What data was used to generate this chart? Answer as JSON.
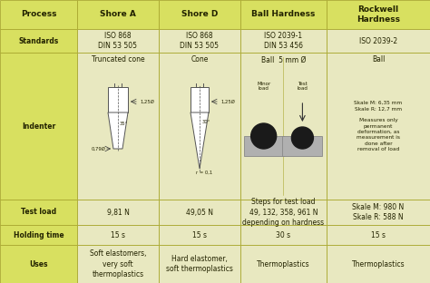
{
  "bg_color": "#f5f5c8",
  "header_bg": "#d8e060",
  "cell_bg": "#e8e8c0",
  "border_color": "#aaa830",
  "text_color": "#222200",
  "header_font_size": 6.5,
  "cell_font_size": 5.5,
  "small_font_size": 4.5,
  "headers": [
    "Process",
    "Shore A",
    "Shore D",
    "Ball Hardness",
    "Rockwell\nHardness"
  ],
  "stds": [
    "ISO 868\nDIN 53 505",
    "ISO 868\nDIN 53 505",
    "ISO 2039-1\nDIN 53 456",
    "ISO 2039-2"
  ],
  "indent_labels": [
    "Truncated cone",
    "Cone",
    "Ball  5 mm Ø",
    "Ball"
  ],
  "rockwell_text": "Skale M: 6,35 mm\nSkale R: 12,7 mm\n\nMeasures only\npermanent\ndeformation, as\nmeasurement is\ndone after\nremoval of load",
  "tloads": [
    "9,81 N",
    "49,05 N",
    "Steps for test load\n49, 132, 358, 961 N\ndepending on hardness",
    "Skale M: 980 N\nSkale R: 588 N"
  ],
  "htimes": [
    "15 s",
    "15 s",
    "30 s",
    "15 s"
  ],
  "uses": [
    "Soft elastomers,\nvery soft\nthermoplastics",
    "Hard elastomer,\nsoft thermoplastics",
    "Thermoplastics",
    "Thermoplastics"
  ],
  "row_labels": [
    "Standards",
    "Indenter",
    "Test load",
    "Holding time",
    "Uses"
  ]
}
